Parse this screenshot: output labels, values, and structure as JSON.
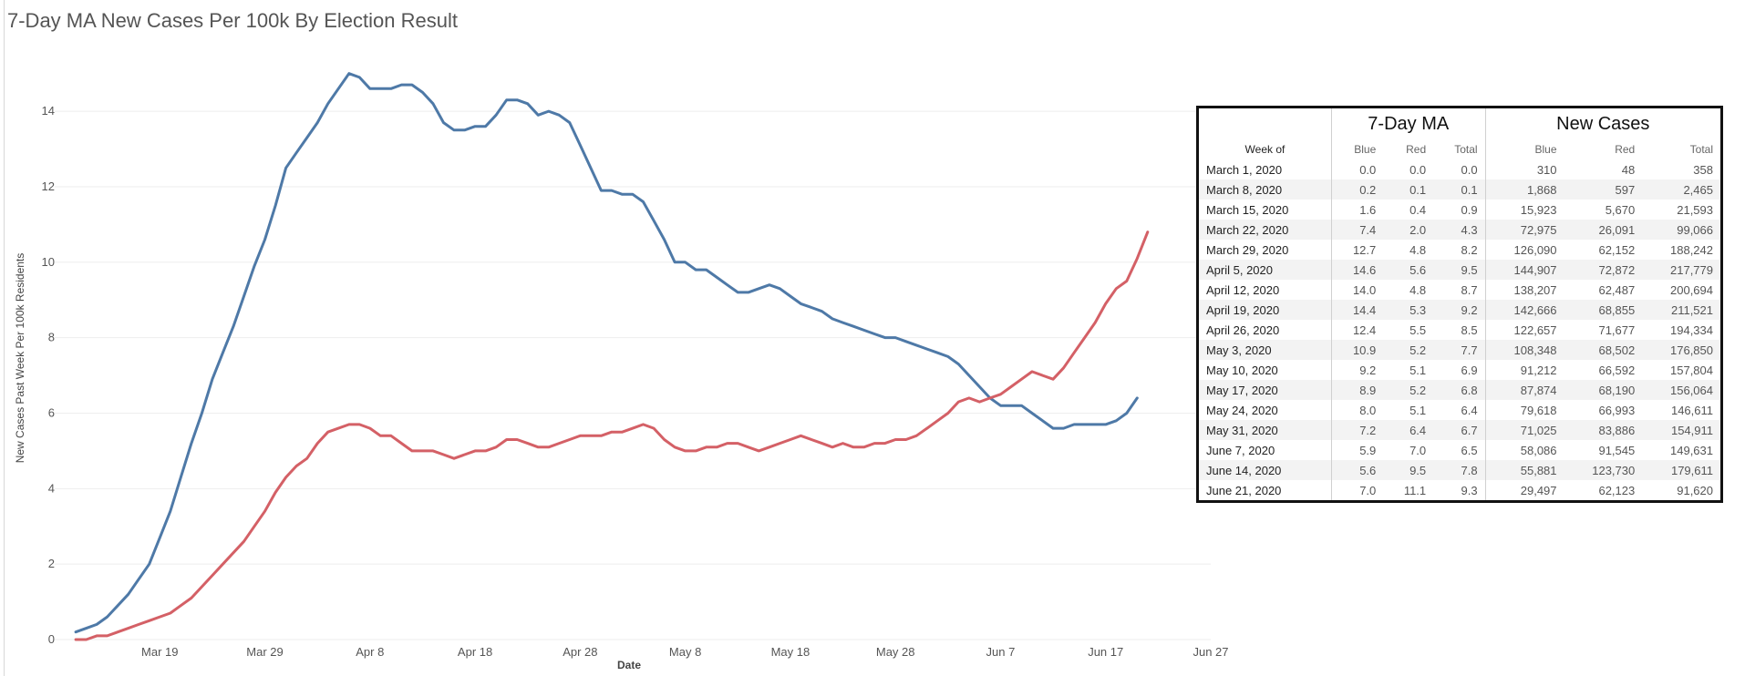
{
  "title": "7-Day MA New Cases Per 100k By Election Result",
  "chart_data": {
    "type": "line",
    "title": "7-Day MA New Cases Per 100k By Election Result",
    "xlabel": "Date",
    "ylabel": "New Cases Past Week Per 100k Residents",
    "x_start": "2020-03-11",
    "x_step_days": 1,
    "xlim": [
      "2020-03-09",
      "2020-06-27"
    ],
    "ylim": [
      0,
      15.5
    ],
    "x_tick_labels": [
      "Mar 19",
      "Mar 29",
      "Apr 8",
      "Apr 18",
      "Apr 28",
      "May 8",
      "May 18",
      "May 28",
      "Jun 7",
      "Jun 17",
      "Jun 27"
    ],
    "y_ticks": [
      0,
      2,
      4,
      6,
      8,
      10,
      12,
      14
    ],
    "grid": true,
    "legend": "none",
    "series": [
      {
        "name": "Blue",
        "color": "#4e79a7",
        "values": [
          0.2,
          0.3,
          0.4,
          0.6,
          0.9,
          1.2,
          1.6,
          2.0,
          2.7,
          3.4,
          4.3,
          5.2,
          6.0,
          6.9,
          7.6,
          8.3,
          9.1,
          9.9,
          10.6,
          11.5,
          12.5,
          12.9,
          13.3,
          13.7,
          14.2,
          14.6,
          15.0,
          14.9,
          14.6,
          14.6,
          14.6,
          14.7,
          14.7,
          14.5,
          14.2,
          13.7,
          13.5,
          13.5,
          13.6,
          13.6,
          13.9,
          14.3,
          14.3,
          14.2,
          13.9,
          14.0,
          13.9,
          13.7,
          13.1,
          12.5,
          11.9,
          11.9,
          11.8,
          11.8,
          11.6,
          11.1,
          10.6,
          10.0,
          10.0,
          9.8,
          9.8,
          9.6,
          9.4,
          9.2,
          9.2,
          9.3,
          9.4,
          9.3,
          9.1,
          8.9,
          8.8,
          8.7,
          8.5,
          8.4,
          8.3,
          8.2,
          8.1,
          8.0,
          8.0,
          7.9,
          7.8,
          7.7,
          7.6,
          7.5,
          7.3,
          7.0,
          6.7,
          6.4,
          6.2,
          6.2,
          6.2,
          6.0,
          5.8,
          5.6,
          5.6,
          5.7,
          5.7,
          5.7,
          5.7,
          5.8,
          6.0,
          6.4
        ]
      },
      {
        "name": "Red",
        "color": "#d46066",
        "values": [
          0.0,
          0.0,
          0.1,
          0.1,
          0.2,
          0.3,
          0.4,
          0.5,
          0.6,
          0.7,
          0.9,
          1.1,
          1.4,
          1.7,
          2.0,
          2.3,
          2.6,
          3.0,
          3.4,
          3.9,
          4.3,
          4.6,
          4.8,
          5.2,
          5.5,
          5.6,
          5.7,
          5.7,
          5.6,
          5.4,
          5.4,
          5.2,
          5.0,
          5.0,
          5.0,
          4.9,
          4.8,
          4.9,
          5.0,
          5.0,
          5.1,
          5.3,
          5.3,
          5.2,
          5.1,
          5.1,
          5.2,
          5.3,
          5.4,
          5.4,
          5.4,
          5.5,
          5.5,
          5.6,
          5.7,
          5.6,
          5.3,
          5.1,
          5.0,
          5.0,
          5.1,
          5.1,
          5.2,
          5.2,
          5.1,
          5.0,
          5.1,
          5.2,
          5.3,
          5.4,
          5.3,
          5.2,
          5.1,
          5.2,
          5.1,
          5.1,
          5.2,
          5.2,
          5.3,
          5.3,
          5.4,
          5.6,
          5.8,
          6.0,
          6.3,
          6.4,
          6.3,
          6.4,
          6.5,
          6.7,
          6.9,
          7.1,
          7.0,
          6.9,
          7.2,
          7.6,
          8.0,
          8.4,
          8.9,
          9.3,
          9.5,
          10.1,
          10.8
        ]
      }
    ]
  },
  "table": {
    "week_header": "Week of",
    "group_headers": [
      "7-Day MA",
      "New Cases"
    ],
    "sub_headers": [
      "Blue",
      "Red",
      "Total",
      "Blue",
      "Red",
      "Total"
    ],
    "rows": [
      [
        "March 1, 2020",
        "0.0",
        "0.0",
        "0.0",
        "310",
        "48",
        "358"
      ],
      [
        "March 8, 2020",
        "0.2",
        "0.1",
        "0.1",
        "1,868",
        "597",
        "2,465"
      ],
      [
        "March 15, 2020",
        "1.6",
        "0.4",
        "0.9",
        "15,923",
        "5,670",
        "21,593"
      ],
      [
        "March 22, 2020",
        "7.4",
        "2.0",
        "4.3",
        "72,975",
        "26,091",
        "99,066"
      ],
      [
        "March 29, 2020",
        "12.7",
        "4.8",
        "8.2",
        "126,090",
        "62,152",
        "188,242"
      ],
      [
        "April 5, 2020",
        "14.6",
        "5.6",
        "9.5",
        "144,907",
        "72,872",
        "217,779"
      ],
      [
        "April 12, 2020",
        "14.0",
        "4.8",
        "8.7",
        "138,207",
        "62,487",
        "200,694"
      ],
      [
        "April 19, 2020",
        "14.4",
        "5.3",
        "9.2",
        "142,666",
        "68,855",
        "211,521"
      ],
      [
        "April 26, 2020",
        "12.4",
        "5.5",
        "8.5",
        "122,657",
        "71,677",
        "194,334"
      ],
      [
        "May 3, 2020",
        "10.9",
        "5.2",
        "7.7",
        "108,348",
        "68,502",
        "176,850"
      ],
      [
        "May 10, 2020",
        "9.2",
        "5.1",
        "6.9",
        "91,212",
        "66,592",
        "157,804"
      ],
      [
        "May 17, 2020",
        "8.9",
        "5.2",
        "6.8",
        "87,874",
        "68,190",
        "156,064"
      ],
      [
        "May 24, 2020",
        "8.0",
        "5.1",
        "6.4",
        "79,618",
        "66,993",
        "146,611"
      ],
      [
        "May 31, 2020",
        "7.2",
        "6.4",
        "6.7",
        "71,025",
        "83,886",
        "154,911"
      ],
      [
        "June 7, 2020",
        "5.9",
        "7.0",
        "6.5",
        "58,086",
        "91,545",
        "149,631"
      ],
      [
        "June 14, 2020",
        "5.6",
        "9.5",
        "7.8",
        "55,881",
        "123,730",
        "179,611"
      ],
      [
        "June 21, 2020",
        "7.0",
        "11.1",
        "9.3",
        "29,497",
        "62,123",
        "91,620"
      ]
    ]
  }
}
